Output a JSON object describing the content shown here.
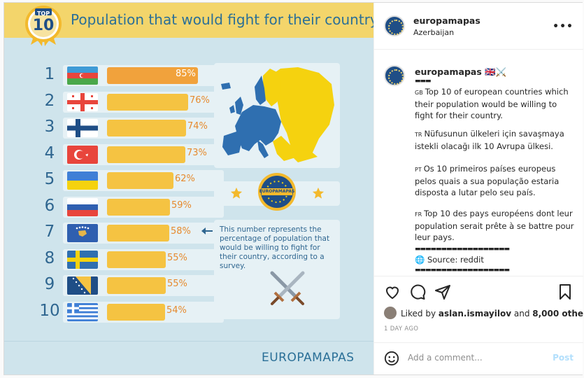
{
  "image": {
    "badge_top": "TOP",
    "badge_number": "10",
    "title": "Population that would fight for their country",
    "ranking": [
      {
        "rank": "1",
        "country": "Azerbaijan",
        "percent": 85,
        "label": "85%"
      },
      {
        "rank": "2",
        "country": "Georgia",
        "percent": 76,
        "label": "76%"
      },
      {
        "rank": "3",
        "country": "Finland",
        "percent": 74,
        "label": "74%"
      },
      {
        "rank": "4",
        "country": "Turkey",
        "percent": 73,
        "label": "73%"
      },
      {
        "rank": "5",
        "country": "Ukraine",
        "percent": 62,
        "label": "62%"
      },
      {
        "rank": "6",
        "country": "Russia",
        "percent": 59,
        "label": "59%"
      },
      {
        "rank": "7",
        "country": "Kosovo",
        "percent": 58,
        "label": "58%"
      },
      {
        "rank": "8",
        "country": "Sweden",
        "percent": 55,
        "label": "55%"
      },
      {
        "rank": "9",
        "country": "Bosnia and Herzegovina",
        "percent": 55,
        "label": "55%"
      },
      {
        "rank": "10",
        "country": "Greece",
        "percent": 54,
        "label": "54%"
      }
    ],
    "note": "This number represents the percentage of population that would be willing to fight for their country, according to a survey.",
    "logo_text": "EUROPAMAPAS",
    "footer_brand": "EUROPAMAPAS",
    "colors": {
      "banner": "#f3d56b",
      "bar": "#f5c342",
      "bar_first": "#f1a23c",
      "map_highlight": "#f5d20f",
      "map_base": "#2f6fb0"
    }
  },
  "header": {
    "username": "europamapas",
    "location": "Azerbaijan",
    "more_icon": "more-horizontal-icon"
  },
  "caption": {
    "username": "europamapas",
    "username_suffix": "🇬🇧⚔️",
    "blocks": [
      {
        "code": "GB",
        "text": "Top 10 of european countries which their population would be willing to fight for their country."
      },
      {
        "code": "TR",
        "text": "Nüfusunun ülkeleri için savaşmaya istekli olacağı ilk 10 Avrupa ülkesi."
      },
      {
        "code": "PT",
        "text": "Os 10 primeiros países europeus pelos quais a sua população estaria disposta a lutar pelo seu país."
      },
      {
        "code": "FR",
        "text": "Top 10 des pays européens dont leur population serait prête à se battre pour leur pays."
      }
    ],
    "separator": "▬▬▬▬▬▬▬▬▬▬▬▬▬▬▬▬▬▬",
    "source": "🌐 Source: reddit",
    "separator2": "▬▬▬▬▬▬▬▬▬▬▬▬▬▬▬▬▬▬"
  },
  "likes": {
    "prefix": "Liked by ",
    "user": "aslan.ismayilov",
    "middle": " and ",
    "count": "8,000 others"
  },
  "age": "1 DAY AGO",
  "comment": {
    "placeholder": "Add a comment...",
    "post_label": "Post"
  }
}
